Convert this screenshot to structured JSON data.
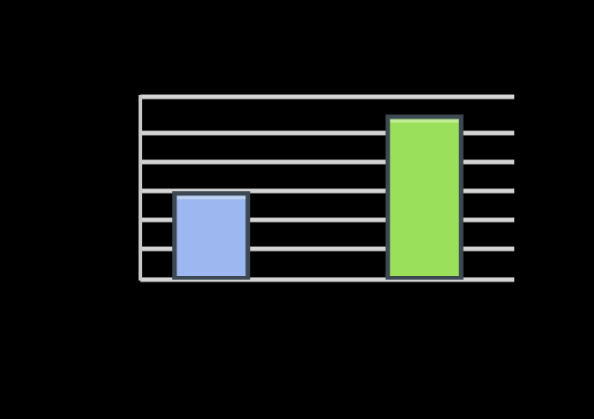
{
  "chart_data": {
    "type": "bar",
    "categories": [
      "",
      ""
    ],
    "values": [
      3,
      5.6
    ],
    "colors": [
      "#9db8f0",
      "#9be05a"
    ],
    "ylim": [
      0,
      6.2
    ],
    "yticks": [
      0,
      1,
      2,
      3,
      4,
      5,
      6
    ],
    "grid": true,
    "title": "",
    "xlabel": "",
    "ylabel": ""
  }
}
